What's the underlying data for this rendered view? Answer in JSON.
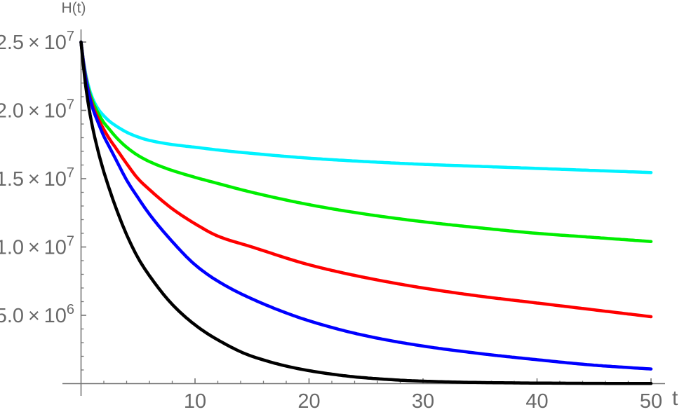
{
  "chart_data": {
    "type": "line",
    "title": "",
    "xlabel": "t",
    "ylabel": "H(t)",
    "x_range": [
      0,
      50
    ],
    "y_range": [
      0,
      25000000
    ],
    "grid": "off",
    "legend": "none",
    "axis_color": "#757575",
    "label_color": "#696969",
    "x_axis": {
      "major_ticks": [
        10,
        20,
        30,
        40,
        50
      ],
      "tick_labels": [
        "10",
        "20",
        "30",
        "40",
        "50"
      ],
      "minor_tick_step": 2
    },
    "y_axis": {
      "major_ticks_e6": [
        5,
        10,
        15,
        20,
        25
      ],
      "tick_labels": [
        {
          "mantissa": "5.0",
          "exponent": "6"
        },
        {
          "mantissa": "1.0",
          "exponent": "7"
        },
        {
          "mantissa": "1.5",
          "exponent": "7"
        },
        {
          "mantissa": "2.0",
          "exponent": "7"
        },
        {
          "mantissa": "2.5",
          "exponent": "7"
        }
      ],
      "minor_tick_step_e6": 1
    },
    "values_unit": "1e6",
    "t": [
      0,
      0.25,
      0.5,
      0.75,
      1,
      1.5,
      2,
      2.5,
      3,
      4,
      5,
      6,
      8,
      10,
      12,
      15,
      20,
      25,
      30,
      35,
      40,
      45,
      50
    ],
    "series": [
      {
        "name": "cyan",
        "color": "#00F2FF",
        "values": [
          25.0,
          23.4,
          22.3,
          21.5,
          20.9,
          20.1,
          19.6,
          19.2,
          18.9,
          18.4,
          18.05,
          17.8,
          17.5,
          17.3,
          17.1,
          16.85,
          16.5,
          16.25,
          16.05,
          15.9,
          15.75,
          15.6,
          15.45
        ]
      },
      {
        "name": "green",
        "color": "#00EE00",
        "values": [
          25.0,
          23.3,
          22.1,
          21.3,
          20.7,
          19.8,
          19.1,
          18.6,
          18.1,
          17.3,
          16.7,
          16.25,
          15.6,
          15.1,
          14.65,
          14.0,
          13.1,
          12.4,
          11.85,
          11.4,
          11.0,
          10.7,
          10.4
        ]
      },
      {
        "name": "red",
        "color": "#FF0000",
        "values": [
          25.0,
          23.3,
          22.0,
          21.1,
          20.4,
          19.4,
          18.6,
          17.9,
          17.3,
          16.1,
          15.0,
          14.2,
          12.8,
          11.7,
          10.8,
          10.0,
          8.7,
          7.75,
          7.0,
          6.4,
          5.9,
          5.4,
          4.9
        ]
      },
      {
        "name": "blue",
        "color": "#0000FF",
        "values": [
          25.0,
          23.2,
          21.9,
          21.0,
          20.2,
          19.1,
          18.1,
          17.3,
          16.5,
          14.9,
          13.6,
          12.4,
          10.4,
          8.7,
          7.5,
          6.2,
          4.6,
          3.5,
          2.75,
          2.2,
          1.75,
          1.35,
          1.07
        ]
      },
      {
        "name": "black",
        "color": "#000000",
        "values": [
          25.0,
          22.9,
          21.2,
          19.9,
          18.8,
          17.0,
          15.5,
          14.2,
          13.0,
          10.9,
          9.2,
          7.9,
          5.8,
          4.3,
          3.2,
          2.0,
          0.95,
          0.42,
          0.18,
          0.08,
          0.04,
          0.02,
          0.01
        ]
      }
    ]
  }
}
